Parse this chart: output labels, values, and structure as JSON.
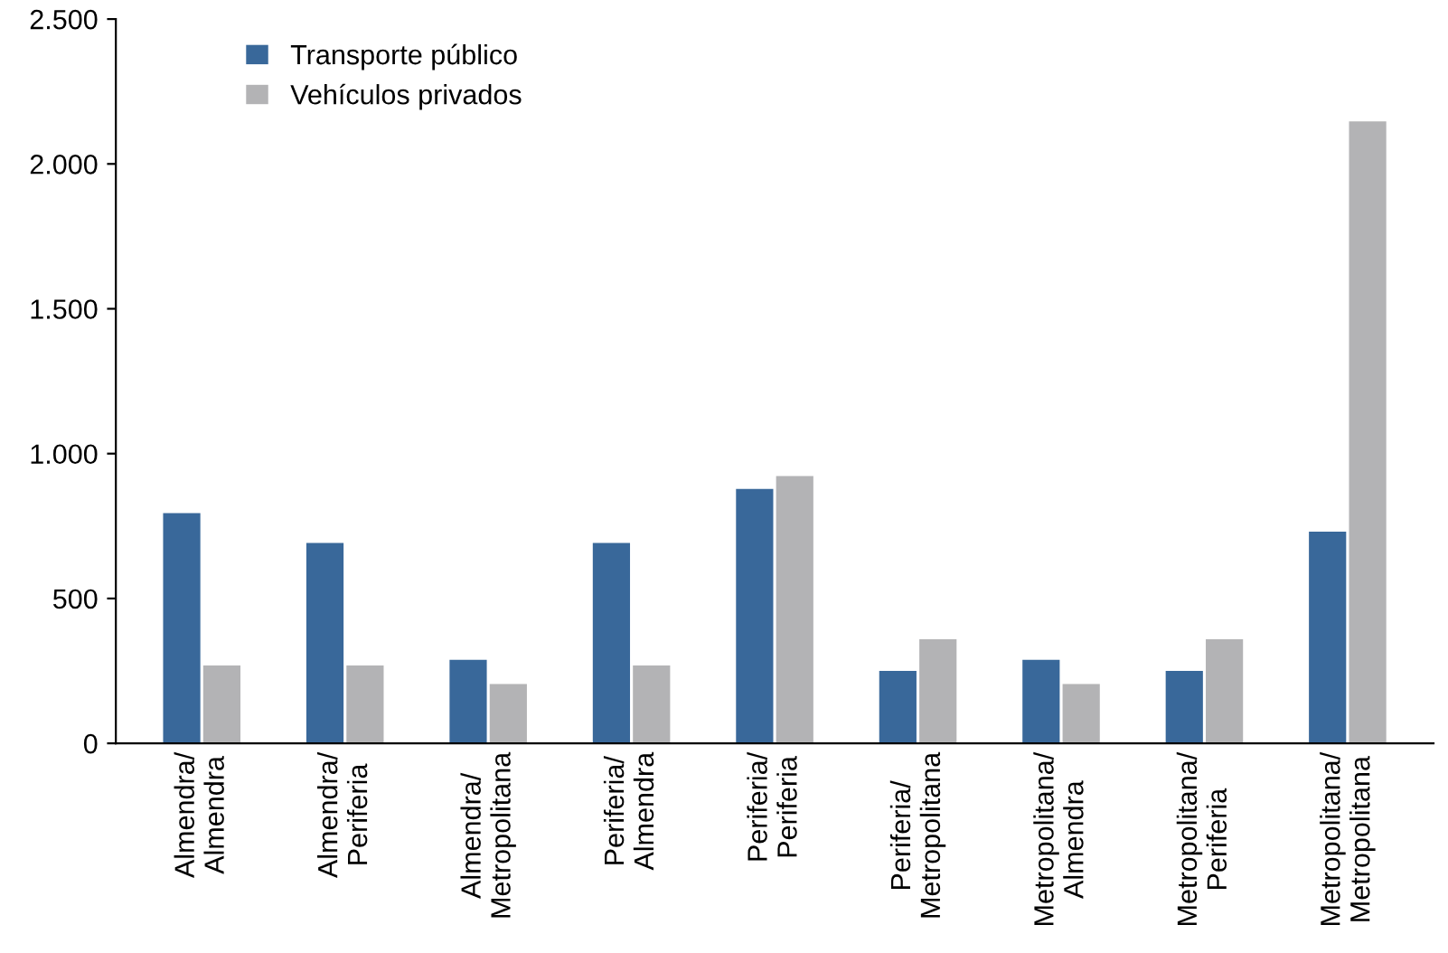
{
  "chart_data": {
    "type": "bar",
    "categories": [
      "Almendra/\nAlmendra",
      "Almendra/\nPeriferia",
      "Almendra/\nMetropolitana",
      "Periferia/\nAlmendra",
      "Periferia/\nPeriferia",
      "Periferia/\nMetropolitana",
      "Metropolitana/\nAlmendra",
      "Metropolitana/\nPeriferia",
      "Metropolitana/\nMetropolitana"
    ],
    "series": [
      {
        "name": "Transporte público",
        "color": "#39689a",
        "values": [
          795,
          692,
          288,
          692,
          878,
          250,
          288,
          250,
          731
        ]
      },
      {
        "name": "Vehículos privados",
        "color": "#b3b3b5",
        "values": [
          269,
          269,
          205,
          269,
          923,
          359,
          205,
          359,
          2147
        ]
      }
    ],
    "ylim": [
      0,
      2500
    ],
    "yticks": [
      0,
      500,
      {
        "value": 1000,
        "label": "1.000"
      },
      {
        "value": 1500,
        "label": "1.500"
      },
      {
        "value": 2000,
        "label": "2.000"
      },
      {
        "value": 2500,
        "label": "2.500"
      }
    ],
    "grid": false,
    "legend": "top left"
  }
}
